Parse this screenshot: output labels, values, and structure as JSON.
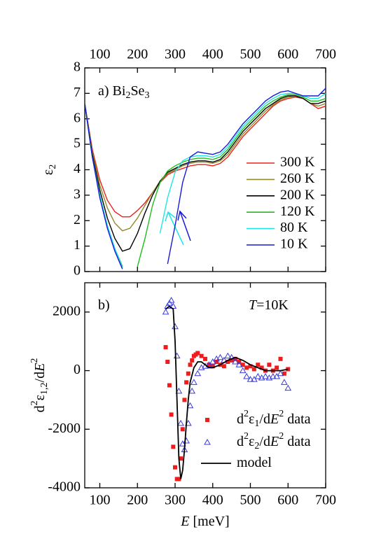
{
  "chart_data": [
    {
      "type": "line",
      "annotation_parts": [
        {
          "text": "a)  Bi"
        },
        {
          "text": "2",
          "style": "sub"
        },
        {
          "text": "Se"
        },
        {
          "text": "3",
          "style": "sub"
        }
      ],
      "y_label_parts": [
        {
          "text": "ε"
        },
        {
          "text": "2",
          "style": "sub"
        }
      ],
      "x_axis_position": "top",
      "xlim": [
        60,
        700
      ],
      "xticks": [
        100,
        200,
        300,
        400,
        500,
        600,
        700
      ],
      "ylim": [
        0,
        8
      ],
      "yticks": [
        0,
        1,
        2,
        3,
        4,
        5,
        6,
        7,
        8
      ],
      "x": [
        60,
        80,
        100,
        120,
        140,
        160,
        180,
        200,
        220,
        240,
        260,
        280,
        300,
        320,
        340,
        360,
        380,
        400,
        420,
        440,
        460,
        480,
        500,
        520,
        540,
        560,
        580,
        600,
        620,
        640,
        660,
        680,
        700
      ],
      "series": [
        {
          "name": "300 K",
          "color": "#e8231d",
          "values": [
            6.6,
            4.8,
            3.6,
            2.8,
            2.35,
            2.15,
            2.15,
            2.4,
            2.7,
            3.1,
            3.5,
            3.8,
            3.95,
            4.05,
            4.15,
            4.2,
            4.2,
            4.15,
            4.25,
            4.5,
            4.9,
            5.3,
            5.6,
            5.9,
            6.2,
            6.5,
            6.7,
            6.8,
            6.85,
            6.8,
            6.6,
            6.4,
            6.5
          ]
        },
        {
          "name": "260 K",
          "color": "#8f8a2a",
          "values": [
            6.6,
            4.7,
            3.4,
            2.5,
            1.9,
            1.6,
            1.7,
            2.1,
            2.6,
            3.1,
            3.55,
            3.85,
            4.0,
            4.15,
            4.25,
            4.3,
            4.3,
            4.25,
            4.35,
            4.6,
            5.0,
            5.4,
            5.7,
            6.0,
            6.3,
            6.55,
            6.75,
            6.85,
            6.9,
            6.8,
            6.6,
            6.5,
            6.6
          ]
        },
        {
          "name": "200 K",
          "color": "#000000",
          "values": [
            6.6,
            4.6,
            3.2,
            2.1,
            1.3,
            0.8,
            0.9,
            1.5,
            2.3,
            3.0,
            3.55,
            3.9,
            4.05,
            4.2,
            4.3,
            4.35,
            4.35,
            4.3,
            4.4,
            4.7,
            5.1,
            5.5,
            5.8,
            6.1,
            6.4,
            6.6,
            6.8,
            6.9,
            6.9,
            6.8,
            6.6,
            6.6,
            6.7
          ]
        },
        {
          "name": "120 K",
          "color": "#1fbf1f",
          "values": [
            6.6,
            4.5,
            3.0,
            1.8,
            0.9,
            0.2,
            null,
            0.2,
            1.3,
            2.6,
            3.5,
            3.95,
            4.15,
            4.3,
            4.4,
            4.45,
            4.45,
            4.4,
            4.5,
            4.8,
            5.2,
            5.6,
            5.9,
            6.2,
            6.5,
            6.7,
            6.85,
            6.95,
            6.95,
            6.85,
            6.7,
            6.7,
            6.8
          ]
        },
        {
          "name": "80 K",
          "color": "#1fe5e5",
          "values": [
            6.6,
            4.5,
            3.0,
            1.8,
            0.9,
            0.15,
            null,
            null,
            null,
            null,
            1.5,
            2.9,
            3.9,
            4.35,
            4.5,
            4.55,
            4.55,
            4.5,
            4.6,
            4.9,
            5.3,
            5.7,
            6.0,
            6.3,
            6.6,
            6.8,
            6.95,
            7.0,
            7.0,
            6.9,
            6.8,
            6.8,
            7.0
          ]
        },
        {
          "name": "10 K",
          "color": "#1a1ad6",
          "values": [
            6.6,
            4.5,
            2.9,
            1.7,
            0.8,
            0.1,
            null,
            null,
            null,
            null,
            null,
            0.3,
            1.8,
            3.5,
            4.5,
            4.7,
            4.65,
            4.6,
            4.7,
            5.0,
            5.4,
            5.8,
            6.1,
            6.4,
            6.7,
            6.9,
            7.05,
            7.1,
            7.0,
            6.9,
            6.9,
            6.9,
            7.2
          ]
        }
      ]
    },
    {
      "type": "scatter",
      "annotation_parts": [
        {
          "text": "b)"
        }
      ],
      "annotation2_parts": [
        {
          "text": "T",
          "style": "italic"
        },
        {
          "text": "=10K"
        }
      ],
      "y_label_parts": [
        {
          "text": "d"
        },
        {
          "text": "2",
          "style": "sup"
        },
        {
          "text": "ε"
        },
        {
          "text": "1,2",
          "style": "sub"
        },
        {
          "text": "/d"
        },
        {
          "text": "E",
          "style": "italic"
        },
        {
          "text": "2",
          "style": "sup"
        }
      ],
      "x_label_parts": [
        {
          "text": "E",
          "style": "italic"
        },
        {
          "text": " [meV]"
        }
      ],
      "x_axis_position": "bottom",
      "xlim": [
        60,
        700
      ],
      "xticks": [
        100,
        200,
        300,
        400,
        500,
        600,
        700
      ],
      "ylim": [
        -4000,
        3000
      ],
      "yticks": [
        -4000,
        -2000,
        0,
        2000
      ],
      "series": [
        {
          "name": [
            {
              "text": "d"
            },
            {
              "text": "2",
              "style": "sup"
            },
            {
              "text": "ε"
            },
            {
              "text": "1",
              "style": "sub"
            },
            {
              "text": "/d"
            },
            {
              "text": "E",
              "style": "italic"
            },
            {
              "text": "2",
              "style": "sup"
            },
            {
              "text": " data"
            }
          ],
          "color": "#ee1c1c",
          "marker": "square",
          "x": [
            275,
            280,
            285,
            290,
            295,
            300,
            305,
            310,
            315,
            320,
            325,
            330,
            335,
            340,
            345,
            350,
            355,
            360,
            370,
            380,
            390,
            400,
            410,
            420,
            430,
            440,
            450,
            460,
            470,
            480,
            490,
            500,
            510,
            520,
            530,
            540,
            550,
            560,
            570,
            580,
            590,
            600
          ],
          "values": [
            800,
            300,
            -500,
            -1500,
            -2600,
            -3300,
            -3700,
            -3700,
            -3000,
            -2000,
            -1000,
            -400,
            -100,
            200,
            350,
            500,
            550,
            600,
            500,
            400,
            200,
            150,
            300,
            200,
            150,
            300,
            350,
            400,
            300,
            200,
            100,
            150,
            50,
            200,
            100,
            0,
            200,
            0,
            100,
            400,
            -100,
            50
          ]
        },
        {
          "name": [
            {
              "text": "d"
            },
            {
              "text": "2",
              "style": "sup"
            },
            {
              "text": "ε"
            },
            {
              "text": "2",
              "style": "sub"
            },
            {
              "text": "/d"
            },
            {
              "text": "E",
              "style": "italic"
            },
            {
              "text": "2",
              "style": "sup"
            },
            {
              "text": " data"
            }
          ],
          "color": "#3a3ad8",
          "marker": "triangle",
          "x": [
            275,
            280,
            285,
            290,
            295,
            300,
            305,
            310,
            315,
            320,
            325,
            330,
            335,
            340,
            345,
            350,
            360,
            370,
            380,
            390,
            400,
            410,
            420,
            430,
            440,
            450,
            460,
            470,
            480,
            490,
            500,
            510,
            520,
            530,
            540,
            550,
            560,
            570,
            580,
            590,
            600
          ],
          "values": [
            2000,
            2200,
            2300,
            2400,
            2200,
            1500,
            500,
            -700,
            -1800,
            -2500,
            -2700,
            -2400,
            -1800,
            -1200,
            -700,
            -400,
            -100,
            100,
            150,
            200,
            300,
            400,
            450,
            350,
            500,
            450,
            300,
            200,
            0,
            -200,
            -300,
            -300,
            -200,
            -250,
            -200,
            -250,
            -200,
            -200,
            -100,
            -400,
            -600
          ]
        },
        {
          "name": [
            {
              "text": "model"
            }
          ],
          "color": "#000000",
          "marker": "line",
          "x": [
            275,
            285,
            295,
            300,
            305,
            310,
            315,
            320,
            325,
            330,
            335,
            340,
            350,
            360,
            370,
            380,
            390,
            400,
            420,
            440,
            460,
            480,
            500,
            520,
            540,
            560,
            580,
            600
          ],
          "values": [
            2100,
            2200,
            2100,
            1000,
            -1000,
            -3000,
            -3700,
            -3400,
            -2700,
            -1800,
            -1000,
            -400,
            100,
            300,
            300,
            200,
            100,
            100,
            200,
            350,
            450,
            350,
            200,
            100,
            0,
            0,
            0,
            50
          ]
        }
      ]
    }
  ]
}
